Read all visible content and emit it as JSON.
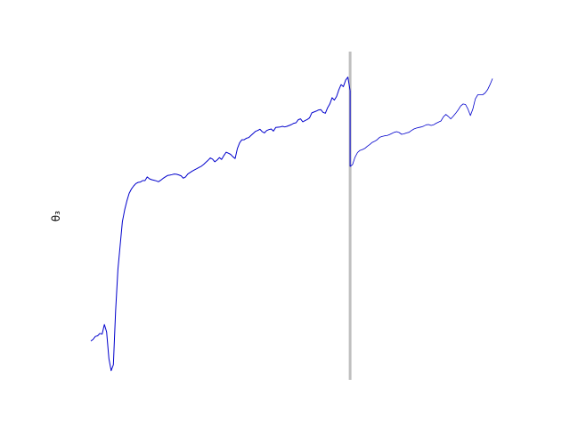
{
  "chart_data": {
    "type": "line",
    "ylabel": "θ₃",
    "grid": false,
    "colors": {
      "series": "#0000cc",
      "divider": "#bfbfbf"
    },
    "x_range": [
      0,
      299
    ],
    "y_range": [
      0,
      100
    ],
    "divider_x": 193,
    "series": [
      {
        "segment": "main",
        "points": [
          [
            0,
            8
          ],
          [
            1,
            8.5
          ],
          [
            2,
            9.5
          ],
          [
            3,
            9.7
          ],
          [
            4,
            10.5
          ],
          [
            5,
            10.3
          ],
          [
            6,
            13.5
          ],
          [
            7,
            11
          ],
          [
            8,
            2
          ],
          [
            9,
            -2
          ],
          [
            10,
            0
          ],
          [
            11,
            18
          ],
          [
            12,
            32
          ],
          [
            13,
            40
          ],
          [
            14,
            48
          ],
          [
            15,
            52
          ],
          [
            16,
            55
          ],
          [
            17,
            57.5
          ],
          [
            18,
            59
          ],
          [
            19,
            60
          ],
          [
            20,
            60.8
          ],
          [
            21,
            61.2
          ],
          [
            22,
            61.3
          ],
          [
            23,
            61.8
          ],
          [
            24,
            61.8
          ],
          [
            25,
            63
          ],
          [
            26,
            62.4
          ],
          [
            27,
            62.1
          ],
          [
            28,
            61.9
          ],
          [
            29,
            61.7
          ],
          [
            30,
            61.4
          ],
          [
            31,
            61.9
          ],
          [
            32,
            62.5
          ],
          [
            33,
            63
          ],
          [
            34,
            63.5
          ],
          [
            35,
            63.6
          ],
          [
            36,
            63.8
          ],
          [
            37,
            64
          ],
          [
            38,
            63.9
          ],
          [
            39,
            63.7
          ],
          [
            40,
            63.4
          ],
          [
            41,
            62.6
          ],
          [
            42,
            63
          ],
          [
            43,
            64
          ],
          [
            44,
            64.5
          ],
          [
            45,
            65
          ],
          [
            46,
            65.4
          ],
          [
            47,
            65.8
          ],
          [
            48,
            66.2
          ],
          [
            49,
            66.6
          ],
          [
            50,
            67.2
          ],
          [
            51,
            67.9
          ],
          [
            52,
            68.6
          ],
          [
            53,
            69.4
          ],
          [
            54,
            69
          ],
          [
            55,
            68.1
          ],
          [
            56,
            68.7
          ],
          [
            57,
            69.5
          ],
          [
            58,
            68.9
          ],
          [
            59,
            70.2
          ],
          [
            60,
            71.3
          ],
          [
            61,
            71
          ],
          [
            62,
            70.6
          ],
          [
            63,
            69.8
          ],
          [
            64,
            69.2
          ],
          [
            65,
            72.5
          ],
          [
            66,
            74.5
          ],
          [
            67,
            75.5
          ],
          [
            68,
            75.5
          ],
          [
            69,
            76
          ],
          [
            70,
            76.2
          ],
          [
            71,
            76.9
          ],
          [
            72,
            77.6
          ],
          [
            73,
            78.3
          ],
          [
            74,
            78.6
          ],
          [
            75,
            79
          ],
          [
            76,
            78.2
          ],
          [
            77,
            77.8
          ],
          [
            78,
            78.6
          ],
          [
            79,
            78.9
          ],
          [
            80,
            79.1
          ],
          [
            81,
            78.4
          ],
          [
            82,
            79.6
          ],
          [
            83,
            79.7
          ],
          [
            84,
            79.8
          ],
          [
            85,
            80
          ],
          [
            86,
            79.8
          ],
          [
            87,
            80
          ],
          [
            88,
            80.3
          ],
          [
            89,
            80.6
          ],
          [
            90,
            81
          ],
          [
            91,
            81.2
          ],
          [
            92,
            82.2
          ],
          [
            93,
            82.5
          ],
          [
            94,
            81.5
          ],
          [
            95,
            81.9
          ],
          [
            96,
            82.3
          ],
          [
            97,
            82.8
          ],
          [
            98,
            84.5
          ],
          [
            99,
            84.8
          ],
          [
            100,
            85.1
          ],
          [
            101,
            85.5
          ],
          [
            102,
            85.6
          ],
          [
            103,
            84.7
          ],
          [
            104,
            84.4
          ],
          [
            105,
            86.2
          ],
          [
            106,
            87.5
          ],
          [
            107,
            89.6
          ],
          [
            108,
            88.8
          ],
          [
            109,
            90
          ],
          [
            110,
            92.3
          ],
          [
            111,
            94
          ],
          [
            112,
            93.3
          ],
          [
            113,
            95.5
          ],
          [
            114,
            96.5
          ],
          [
            115,
            92
          ]
        ]
      },
      {
        "segment": "after-divider",
        "points": [
          [
            116,
            66.5
          ],
          [
            117,
            67.2
          ],
          [
            118,
            69.6
          ],
          [
            119,
            71.2
          ],
          [
            120,
            71.9
          ],
          [
            121,
            72.2
          ],
          [
            122,
            72.6
          ],
          [
            123,
            73.3
          ],
          [
            124,
            73.9
          ],
          [
            125,
            74.6
          ],
          [
            126,
            75
          ],
          [
            127,
            75.5
          ],
          [
            128,
            76.3
          ],
          [
            129,
            76.6
          ],
          [
            130,
            76.8
          ],
          [
            131,
            76.9
          ],
          [
            132,
            77.2
          ],
          [
            133,
            77.6
          ],
          [
            134,
            78
          ],
          [
            135,
            78.2
          ],
          [
            136,
            77.9
          ],
          [
            137,
            77.3
          ],
          [
            138,
            77.5
          ],
          [
            139,
            77.8
          ],
          [
            140,
            78
          ],
          [
            141,
            78.6
          ],
          [
            142,
            79.1
          ],
          [
            143,
            79.4
          ],
          [
            144,
            79.6
          ],
          [
            145,
            79.8
          ],
          [
            146,
            80.1
          ],
          [
            147,
            80.5
          ],
          [
            148,
            80.6
          ],
          [
            149,
            80.3
          ],
          [
            150,
            80.5
          ],
          [
            151,
            81
          ],
          [
            152,
            81.4
          ],
          [
            153,
            81.8
          ],
          [
            154,
            83.2
          ],
          [
            155,
            84
          ],
          [
            156,
            83.3
          ],
          [
            157,
            82.5
          ],
          [
            158,
            83.4
          ],
          [
            159,
            84.4
          ],
          [
            160,
            85.5
          ],
          [
            161,
            86.8
          ],
          [
            162,
            87.5
          ],
          [
            163,
            87.3
          ],
          [
            164,
            85.8
          ],
          [
            165,
            83.6
          ],
          [
            166,
            85.8
          ],
          [
            167,
            89.2
          ],
          [
            168,
            90.6
          ],
          [
            169,
            90.6
          ],
          [
            170,
            90.6
          ],
          [
            171,
            91.2
          ],
          [
            172,
            92.3
          ],
          [
            173,
            94
          ],
          [
            174,
            96
          ]
        ]
      }
    ]
  }
}
